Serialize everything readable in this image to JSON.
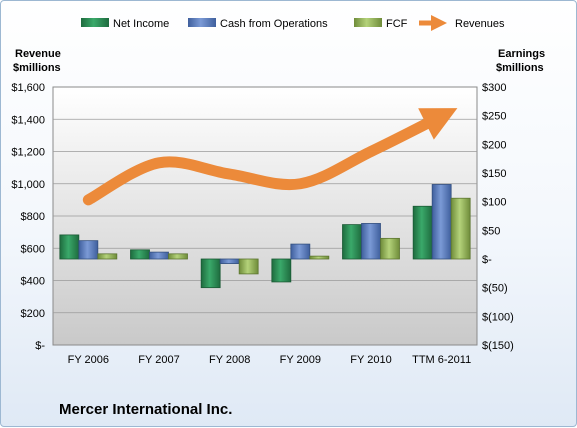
{
  "chart_data": {
    "type": "bar",
    "title": "Mercer International Inc.",
    "categories": [
      "FY 2006",
      "FY 2007",
      "FY 2008",
      "FY 2009",
      "FY 2010",
      "TTM 6-2011"
    ],
    "series": [
      {
        "name": "Net Income",
        "axis": "right",
        "color": "#2e8b57",
        "values": [
          42,
          16,
          -50,
          -40,
          60,
          92
        ]
      },
      {
        "name": "Cash from Operations",
        "axis": "right",
        "color": "#5b7fc3",
        "values": [
          32,
          12,
          -8,
          26,
          62,
          130
        ]
      },
      {
        "name": "FCF",
        "axis": "right",
        "color": "#98b856",
        "values": [
          9,
          9,
          -26,
          5,
          36,
          106
        ]
      },
      {
        "name": "Revenues",
        "axis": "left",
        "type": "line",
        "color": "#ec8a3a",
        "values": [
          900,
          1130,
          1060,
          1000,
          1200,
          1420
        ]
      }
    ],
    "ylabel_left": [
      "Revenue",
      "$millions"
    ],
    "ylabel_right": [
      "Earnings",
      "$millions"
    ],
    "ylim_left": [
      0,
      1600
    ],
    "ylim_right": [
      -150,
      300
    ],
    "left_ticks": [
      "$-",
      "$200",
      "$400",
      "$600",
      "$800",
      "$1,000",
      "$1,200",
      "$1,400",
      "$1,600"
    ],
    "right_ticks": [
      "$(150)",
      "$(100)",
      "$(50)",
      "$-",
      "$50",
      "$100",
      "$150",
      "$200",
      "$250",
      "$300"
    ],
    "legend_position": "top",
    "grid": "horizontal"
  }
}
